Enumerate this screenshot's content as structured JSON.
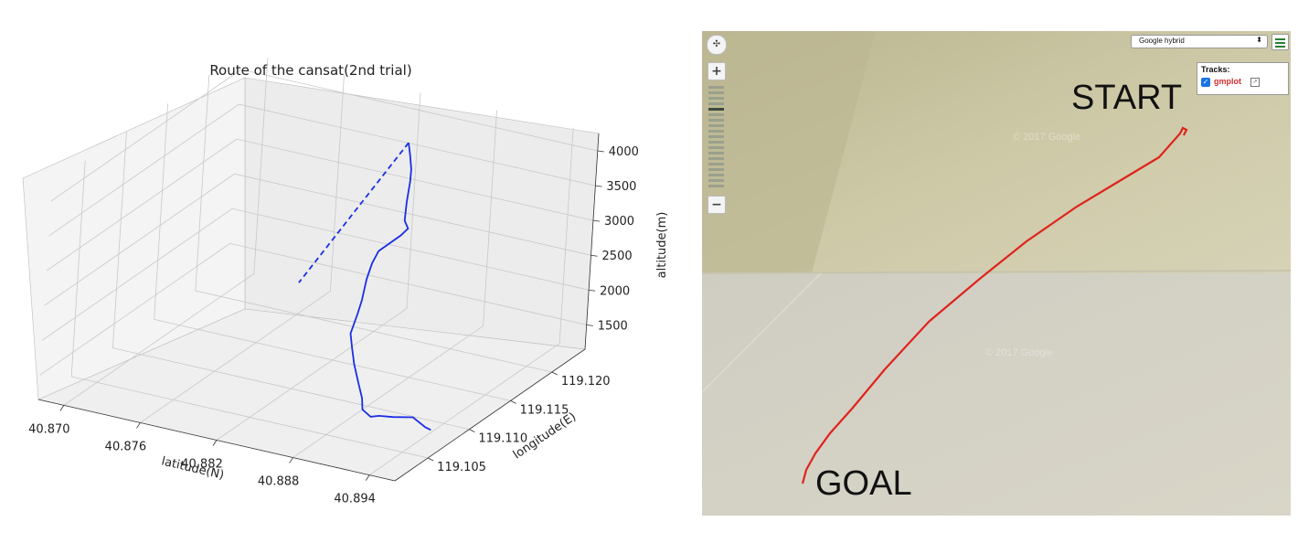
{
  "chart_data": [
    {
      "type": "line3d",
      "title": "Route of the cansat(2nd trial)",
      "xlabel": "latitude(N)",
      "ylabel": "longitude(E)",
      "zlabel": "altitude(m)",
      "x_ticks": [
        "40.870",
        "40.876",
        "40.882",
        "40.888",
        "40.894"
      ],
      "y_ticks": [
        "119.105",
        "119.110",
        "119.115",
        "119.120"
      ],
      "z_ticks": [
        "1500",
        "2000",
        "2500",
        "3000",
        "3500",
        "4000"
      ],
      "xlim": [
        40.868,
        40.896
      ],
      "ylim": [
        119.101,
        119.124
      ],
      "zlim": [
        1150,
        4250
      ],
      "grid": true,
      "series": [
        {
          "style": "solid",
          "color": "#1a2ee6",
          "points": [
            [
              40.885,
              119.118,
              4150
            ],
            [
              40.8853,
              119.1178,
              4000
            ],
            [
              40.8857,
              119.1174,
              3850
            ],
            [
              40.8858,
              119.1172,
              3700
            ],
            [
              40.886,
              119.1166,
              3450
            ],
            [
              40.8863,
              119.116,
              3250
            ],
            [
              40.8866,
              119.116,
              3150
            ],
            [
              40.8862,
              119.1158,
              3050
            ],
            [
              40.8848,
              119.1154,
              2800
            ],
            [
              40.8846,
              119.115,
              2650
            ],
            [
              40.8845,
              119.1146,
              2450
            ],
            [
              40.8846,
              119.114,
              2200
            ],
            [
              40.8846,
              119.1136,
              2050
            ],
            [
              40.8845,
              119.113,
              1800
            ],
            [
              40.885,
              119.1125,
              1650
            ],
            [
              40.8856,
              119.1119,
              1500
            ],
            [
              40.8864,
              119.1112,
              1350
            ],
            [
              40.8873,
              119.1104,
              1200
            ],
            [
              40.888,
              119.1094,
              1150
            ],
            [
              40.8891,
              119.1087,
              1150
            ],
            [
              40.8898,
              119.1086,
              1200
            ],
            [
              40.891,
              119.1084,
              1250
            ],
            [
              40.8925,
              119.1085,
              1300
            ],
            [
              40.8935,
              119.1085,
              1200
            ],
            [
              40.894,
              119.1084,
              1190
            ]
          ]
        },
        {
          "style": "dashed",
          "color": "#1a2ee6",
          "points": [
            [
              40.885,
              119.118,
              4150
            ],
            [
              40.8737,
              119.1237,
              1200
            ]
          ]
        }
      ]
    },
    {
      "type": "map-track",
      "track_color": "#e0231c",
      "start_label": "START",
      "end_label": "GOAL",
      "track_name": "gmplot"
    }
  ],
  "map": {
    "map_type": "Google hybrid",
    "tracks_title": "Tracks:",
    "track_name": "gmplot",
    "checkbox_mark": "✓",
    "zoom_in": "+",
    "zoom_out": "−",
    "watermark": "© 2017 Google"
  }
}
